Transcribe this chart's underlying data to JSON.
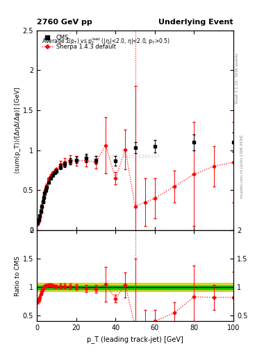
{
  "title_left": "2760 GeV pp",
  "title_right": "Underlying Event",
  "plot_title": "Average Σ(p_T) vs p_T^{lead} (|η_j|<2.0, η|<2.0, p_T>0.5)",
  "xlabel": "p_T (leading track-jet) [GeV]",
  "ylabel_main": "⟨sum(p_T)⟩/[ΔηΔ(Δφ)] [GeV]",
  "ylabel_ratio": "Ratio to CMS",
  "cms_x": [
    0.5,
    1.0,
    1.5,
    2.0,
    2.5,
    3.0,
    3.5,
    4.0,
    4.5,
    5.0,
    6.0,
    7.0,
    8.0,
    9.0,
    10.0,
    12.0,
    14.0,
    17.0,
    20.0,
    25.0,
    30.0,
    40.0,
    50.0,
    60.0,
    80.0,
    100.0
  ],
  "cms_y": [
    0.1,
    0.13,
    0.18,
    0.24,
    0.3,
    0.36,
    0.41,
    0.46,
    0.5,
    0.54,
    0.6,
    0.65,
    0.69,
    0.72,
    0.74,
    0.79,
    0.82,
    0.86,
    0.88,
    0.9,
    0.88,
    0.87,
    1.03,
    1.05,
    1.1,
    1.1
  ],
  "cms_yerr": [
    0.02,
    0.02,
    0.02,
    0.02,
    0.02,
    0.02,
    0.02,
    0.02,
    0.02,
    0.02,
    0.02,
    0.02,
    0.02,
    0.02,
    0.02,
    0.03,
    0.03,
    0.04,
    0.04,
    0.05,
    0.05,
    0.06,
    0.07,
    0.08,
    0.1,
    0.12
  ],
  "sherpa_x": [
    0.5,
    1.0,
    1.5,
    2.0,
    2.5,
    3.0,
    3.5,
    4.0,
    4.5,
    5.0,
    6.0,
    7.0,
    8.0,
    9.0,
    10.0,
    12.0,
    14.0,
    17.0,
    20.0,
    25.0,
    30.0,
    35.0,
    40.0,
    45.0,
    50.0,
    55.0,
    60.0,
    70.0,
    80.0,
    90.0,
    100.0
  ],
  "sherpa_y": [
    0.08,
    0.12,
    0.17,
    0.23,
    0.3,
    0.36,
    0.42,
    0.48,
    0.52,
    0.56,
    0.64,
    0.68,
    0.72,
    0.74,
    0.76,
    0.82,
    0.85,
    0.88,
    0.87,
    0.87,
    0.85,
    1.06,
    0.65,
    1.01,
    0.3,
    0.35,
    0.4,
    0.55,
    0.7,
    0.8,
    0.85
  ],
  "sherpa_yerr": [
    0.02,
    0.02,
    0.02,
    0.02,
    0.02,
    0.02,
    0.02,
    0.02,
    0.02,
    0.02,
    0.02,
    0.02,
    0.02,
    0.02,
    0.02,
    0.05,
    0.05,
    0.06,
    0.06,
    0.07,
    0.08,
    0.35,
    0.08,
    0.25,
    1.5,
    0.3,
    0.25,
    0.2,
    0.65,
    0.25,
    0.5
  ],
  "ratio_sherpa_y": [
    0.75,
    0.77,
    0.82,
    0.88,
    0.93,
    0.97,
    1.0,
    1.02,
    1.03,
    1.03,
    1.04,
    1.04,
    1.03,
    1.02,
    1.01,
    1.02,
    1.02,
    1.01,
    1.0,
    0.98,
    0.97,
    1.05,
    0.8,
    1.04,
    0.3,
    0.35,
    0.4,
    0.55,
    0.83,
    0.82,
    0.82
  ],
  "ratio_sherpa_yerr": [
    0.04,
    0.04,
    0.03,
    0.03,
    0.03,
    0.02,
    0.02,
    0.02,
    0.02,
    0.02,
    0.02,
    0.02,
    0.02,
    0.02,
    0.02,
    0.04,
    0.04,
    0.05,
    0.05,
    0.06,
    0.07,
    0.3,
    0.07,
    0.22,
    1.2,
    0.25,
    0.2,
    0.18,
    0.55,
    0.22,
    0.45
  ],
  "cms_band_inner_color": "#00bb00",
  "cms_band_outer_color": "#cccc00",
  "vline_x": 50.0,
  "watermark": "CMS_2015_I1385107",
  "rivet_label": "Rivet 3.1.10,  500k events",
  "arxiv_label": "mcplots.cern.ch [arXiv:1306.3436]",
  "ylim_main": [
    0,
    2.5
  ],
  "ylim_ratio": [
    0.4,
    2.0
  ],
  "xlim": [
    0,
    100
  ]
}
